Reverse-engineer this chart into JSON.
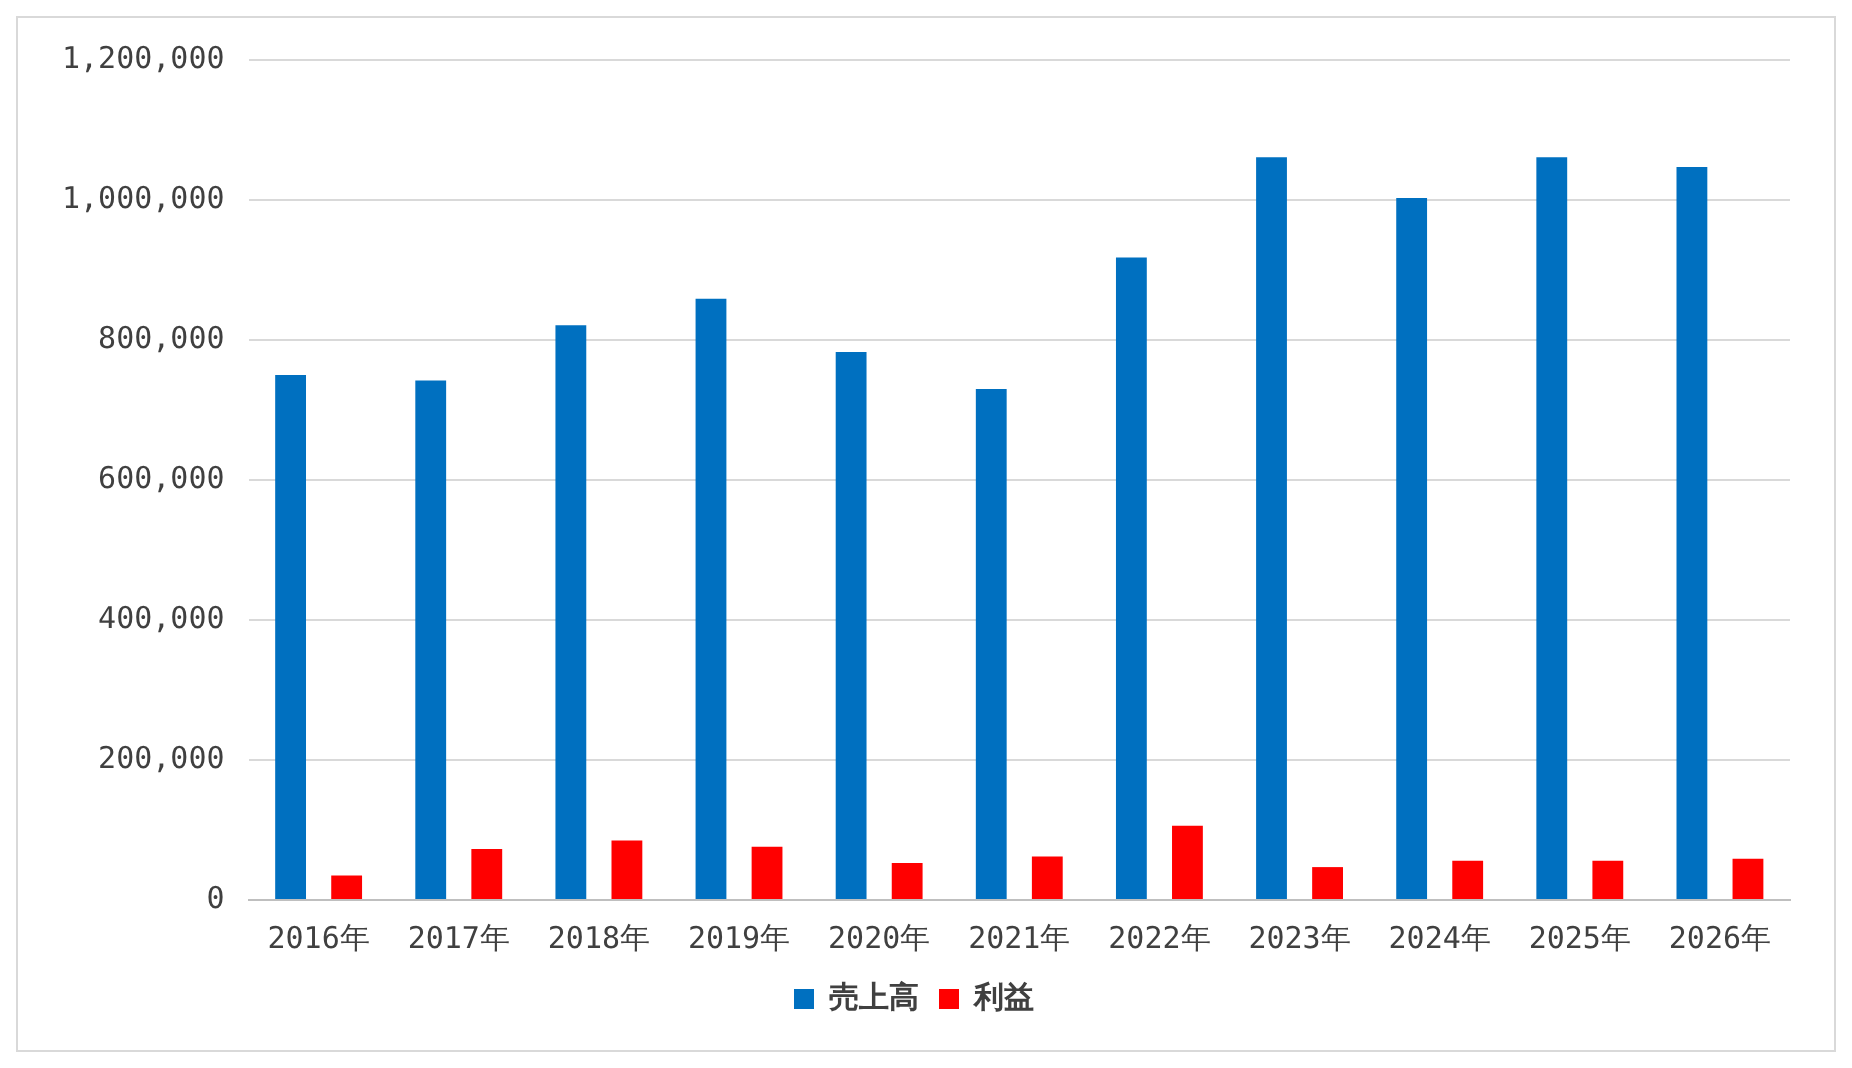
{
  "chart_data": {
    "type": "bar",
    "categories": [
      "2016年",
      "2017年",
      "2018年",
      "2019年",
      "2020年",
      "2021年",
      "2022年",
      "2023年",
      "2024年",
      "2025年",
      "2026年"
    ],
    "series": [
      {
        "name": "売上高",
        "color": "#0070c0",
        "values": [
          750000,
          742000,
          821000,
          859000,
          783000,
          730000,
          918000,
          1061000,
          1003000,
          1061000,
          1047000
        ]
      },
      {
        "name": "利益",
        "color": "#ff0000",
        "values": [
          35000,
          73000,
          85000,
          76000,
          53000,
          62000,
          106000,
          47000,
          56000,
          56000,
          59000
        ]
      }
    ],
    "ylim": [
      0,
      1200000
    ],
    "yticks": [
      {
        "value": 0,
        "label": "0"
      },
      {
        "value": 200000,
        "label": "200,000"
      },
      {
        "value": 400000,
        "label": "400,000"
      },
      {
        "value": 600000,
        "label": "600,000"
      },
      {
        "value": 800000,
        "label": "800,000"
      },
      {
        "value": 1000000,
        "label": "1,000,000"
      },
      {
        "value": 1200000,
        "label": "1,200,000"
      }
    ],
    "grid": "y",
    "legend": "bottom"
  }
}
